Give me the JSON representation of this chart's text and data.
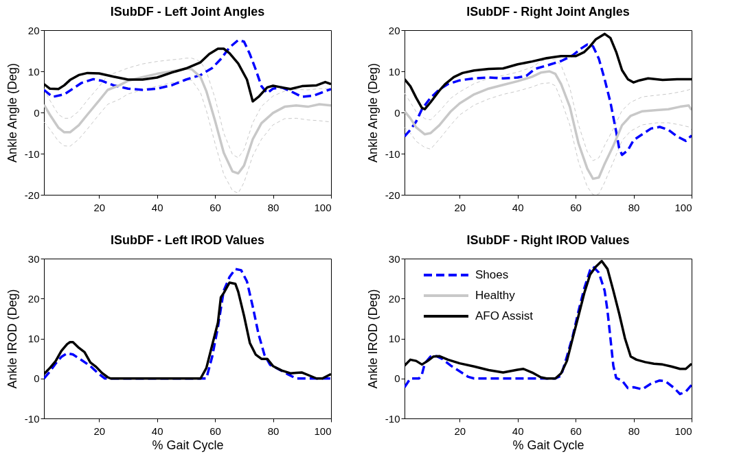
{
  "chart_data": [
    {
      "type": "line",
      "title": "ISubDF - Left Joint Angles",
      "ylabel": "Ankle Angle (Deg)",
      "xlim": [
        1,
        100
      ],
      "xticks": [
        20,
        40,
        60,
        80,
        100
      ],
      "ylim": [
        -20,
        20
      ],
      "yticks": [
        -20,
        -10,
        0,
        10,
        20
      ],
      "grid": false,
      "series": [
        {
          "color": "#0000ff",
          "line_style": "dashed",
          "x": [
            1,
            4,
            8,
            11,
            14,
            18,
            21,
            25,
            30,
            35,
            40,
            45,
            50,
            55,
            59,
            62,
            65,
            68,
            70,
            72,
            74,
            76,
            78,
            80,
            83,
            86,
            90,
            94,
            97,
            100
          ],
          "values": [
            5.5,
            3.8,
            4.4,
            5.8,
            7.2,
            8.1,
            7.7,
            6.6,
            5.8,
            5.5,
            5.8,
            6.6,
            8.0,
            9.1,
            10.8,
            13.0,
            15.8,
            17.6,
            17.2,
            14.2,
            10.5,
            6.4,
            4.7,
            5.8,
            6.1,
            5.2,
            3.8,
            4.1,
            4.9,
            5.7
          ]
        },
        {
          "color": "#c8c8c8",
          "line_style": "dotted",
          "x": [
            1,
            3,
            6,
            8,
            10,
            13,
            16,
            20,
            23,
            27,
            30,
            35,
            40,
            45,
            48,
            50,
            52,
            55,
            57,
            60,
            63,
            66,
            68,
            70,
            73,
            76,
            80,
            84,
            88,
            92,
            96,
            100
          ],
          "values": [
            5.8,
            3.0,
            -0.5,
            -1.4,
            -1.4,
            0.3,
            3.0,
            6.3,
            9.0,
            10.0,
            10.8,
            11.8,
            12.4,
            12.8,
            13.0,
            13.2,
            13.2,
            12.4,
            10.0,
            3.5,
            -5.0,
            -10.2,
            -11.0,
            -9.0,
            -2.5,
            1.5,
            4.0,
            5.2,
            5.6,
            5.5,
            5.8,
            5.8
          ]
        },
        {
          "color": "#c8c8c8",
          "line_style": "dotted",
          "x": [
            1,
            3,
            6,
            8,
            10,
            13,
            16,
            20,
            23,
            27,
            30,
            35,
            40,
            45,
            48,
            50,
            52,
            55,
            57,
            60,
            63,
            66,
            68,
            70,
            73,
            76,
            80,
            84,
            88,
            92,
            96,
            100
          ],
          "values": [
            -2.3,
            -4.0,
            -7.0,
            -8.1,
            -8.2,
            -6.5,
            -4.0,
            -0.5,
            2.0,
            3.2,
            4.5,
            5.5,
            6.4,
            7.2,
            7.6,
            8.0,
            7.8,
            4.8,
            0.5,
            -7.5,
            -15.0,
            -19.0,
            -19.6,
            -17.0,
            -10.5,
            -6.5,
            -3.0,
            -1.5,
            -1.4,
            -1.8,
            -2.0,
            -2.3
          ]
        },
        {
          "color": "#c8c8c8",
          "line_style": "solid",
          "x": [
            1,
            3,
            6,
            8,
            10,
            13,
            16,
            20,
            23,
            27,
            30,
            35,
            40,
            45,
            48,
            50,
            52,
            55,
            57,
            60,
            63,
            66,
            68,
            70,
            73,
            76,
            80,
            84,
            88,
            92,
            96,
            100
          ],
          "values": [
            1.9,
            -0.5,
            -3.7,
            -4.8,
            -4.8,
            -3.1,
            -0.5,
            2.9,
            5.5,
            6.6,
            7.7,
            8.6,
            9.4,
            10.0,
            10.4,
            10.7,
            10.5,
            8.6,
            5.2,
            -2.0,
            -9.8,
            -14.3,
            -14.8,
            -12.9,
            -6.5,
            -2.6,
            -0.1,
            1.4,
            1.7,
            1.4,
            2.0,
            1.7
          ]
        },
        {
          "color": "#000000",
          "line_style": "solid",
          "x": [
            1,
            3,
            6,
            8,
            10,
            13,
            16,
            20,
            25,
            30,
            35,
            40,
            45,
            50,
            55,
            58,
            61,
            63,
            65,
            68,
            71,
            73,
            75,
            78,
            80,
            83,
            86,
            90,
            95,
            98,
            100
          ],
          "values": [
            6.9,
            5.8,
            5.7,
            6.6,
            7.9,
            9.1,
            9.6,
            9.5,
            8.7,
            8.0,
            8.0,
            8.5,
            9.7,
            10.7,
            12.2,
            14.2,
            15.5,
            15.5,
            14.4,
            11.9,
            8.0,
            2.7,
            3.8,
            6.1,
            6.5,
            6.1,
            5.7,
            6.4,
            6.6,
            7.4,
            6.9
          ]
        }
      ]
    },
    {
      "type": "line",
      "title": "ISubDF - Right Joint Angles",
      "ylabel": "Ankle Angle (Deg)",
      "xlim": [
        1,
        100
      ],
      "xticks": [
        20,
        40,
        60,
        80,
        100
      ],
      "ylim": [
        -20,
        20
      ],
      "yticks": [
        -20,
        -10,
        0,
        10,
        20
      ],
      "grid": false,
      "series": [
        {
          "color": "#0000ff",
          "line_style": "dashed",
          "x": [
            1,
            3,
            5,
            7,
            10,
            13,
            16,
            20,
            25,
            30,
            35,
            40,
            43,
            46,
            50,
            55,
            59,
            62,
            64,
            66,
            68,
            70,
            72,
            74,
            75,
            76,
            78,
            80,
            83,
            86,
            89,
            92,
            95,
            98,
            100
          ],
          "values": [
            -5.8,
            -4.2,
            -2.2,
            0.8,
            3.6,
            5.6,
            6.9,
            7.8,
            8.3,
            8.5,
            8.3,
            8.5,
            8.9,
            10.6,
            11.4,
            12.5,
            13.9,
            15.6,
            16.5,
            16.1,
            13.1,
            8.1,
            2.5,
            -4.7,
            -8.6,
            -10.3,
            -9.2,
            -6.7,
            -5.3,
            -3.9,
            -3.5,
            -4.2,
            -5.8,
            -6.9,
            -5.6
          ]
        },
        {
          "color": "#c8c8c8",
          "line_style": "dotted",
          "x": [
            1,
            3,
            5,
            8,
            10,
            13,
            17,
            20,
            25,
            30,
            35,
            40,
            45,
            48,
            51,
            53,
            55,
            58,
            61,
            64,
            66,
            68,
            70,
            73,
            76,
            79,
            83,
            88,
            92,
            96,
            99,
            100
          ],
          "values": [
            4.7,
            2.5,
            0.2,
            -1.5,
            -1.8,
            0.3,
            3.5,
            5.0,
            7.0,
            8.3,
            9.0,
            9.8,
            11.0,
            12.5,
            13.0,
            12.8,
            11.5,
            6.0,
            -3.0,
            -9.5,
            -11.7,
            -11.0,
            -8.0,
            -4.0,
            0.5,
            2.5,
            3.8,
            4.2,
            4.5,
            5.0,
            5.5,
            5.8
          ]
        },
        {
          "color": "#c8c8c8",
          "line_style": "dotted",
          "x": [
            1,
            3,
            5,
            8,
            10,
            13,
            17,
            20,
            25,
            30,
            35,
            40,
            45,
            48,
            51,
            53,
            55,
            58,
            61,
            64,
            66,
            68,
            70,
            73,
            76,
            79,
            83,
            88,
            92,
            96,
            99,
            100
          ],
          "values": [
            -3.6,
            -5.0,
            -7.0,
            -8.5,
            -8.9,
            -6.5,
            -3.0,
            -0.6,
            1.8,
            3.3,
            4.4,
            5.2,
            6.2,
            7.0,
            7.2,
            6.5,
            3.0,
            -3.0,
            -12.0,
            -18.0,
            -20,
            -19.8,
            -17.0,
            -12.0,
            -6.8,
            -4.5,
            -3.0,
            -2.5,
            -2.5,
            -3.0,
            -3.5,
            -4.2
          ]
        },
        {
          "color": "#c8c8c8",
          "line_style": "solid",
          "x": [
            1,
            3,
            5,
            8,
            10,
            13,
            17,
            20,
            25,
            30,
            35,
            40,
            45,
            48,
            51,
            53,
            55,
            58,
            61,
            64,
            66,
            68,
            70,
            73,
            76,
            79,
            83,
            88,
            92,
            96,
            99,
            100
          ],
          "values": [
            0.3,
            -1.4,
            -3.6,
            -5.3,
            -5.0,
            -3.1,
            0.3,
            2.2,
            4.4,
            5.8,
            6.7,
            7.6,
            8.7,
            9.7,
            10.0,
            9.4,
            6.9,
            1.4,
            -7.5,
            -13.6,
            -16.1,
            -15.8,
            -12.5,
            -8.1,
            -3.1,
            -0.8,
            0.3,
            0.6,
            0.8,
            1.4,
            1.7,
            0.6
          ]
        },
        {
          "color": "#000000",
          "line_style": "solid",
          "x": [
            1,
            3,
            5,
            7,
            8,
            10,
            13,
            15,
            18,
            21,
            25,
            30,
            35,
            40,
            45,
            50,
            55,
            60,
            63,
            65,
            67,
            70,
            72,
            74,
            76,
            78,
            80,
            82,
            85,
            90,
            95,
            100
          ],
          "values": [
            8.1,
            6.4,
            3.6,
            1.1,
            0.8,
            2.5,
            5.3,
            6.9,
            8.6,
            9.6,
            10.2,
            10.6,
            10.7,
            11.7,
            12.4,
            13.2,
            13.7,
            13.7,
            14.7,
            16.1,
            17.8,
            19.1,
            18.1,
            14.7,
            10.3,
            8.1,
            7.3,
            7.8,
            8.3,
            7.9,
            8.1,
            8.1
          ]
        }
      ]
    },
    {
      "type": "line",
      "title": "ISubDF - Left IROD Values",
      "xlabel": "% Gait Cycle",
      "ylabel": "Ankle IROD (Deg)",
      "xlim": [
        1,
        100
      ],
      "xticks": [
        20,
        40,
        60,
        80,
        100
      ],
      "ylim": [
        -10,
        30
      ],
      "yticks": [
        -10,
        0,
        10,
        20,
        30
      ],
      "grid": false,
      "series": [
        {
          "color": "#0000ff",
          "line_style": "dashed",
          "x": [
            1,
            3,
            5,
            7,
            9,
            11,
            14,
            17,
            20,
            22,
            57,
            59,
            61,
            63,
            65,
            67,
            69,
            71,
            73,
            75,
            77,
            79,
            82,
            85,
            88,
            100
          ],
          "values": [
            0,
            1.7,
            3.7,
            5.4,
            6.3,
            6.0,
            4.6,
            3.1,
            1.1,
            0,
            0,
            5.4,
            12.9,
            22.0,
            25.4,
            27.4,
            27.1,
            24.3,
            18.0,
            11.1,
            6.0,
            3.4,
            2.3,
            1.1,
            0,
            0
          ]
        },
        {
          "color": "#000000",
          "line_style": "solid",
          "x": [
            1,
            3,
            5,
            7,
            9,
            10,
            11,
            13,
            15,
            17,
            19,
            21,
            23,
            24,
            55,
            57,
            59,
            61,
            62,
            63,
            65,
            67,
            68,
            70,
            72,
            74,
            76,
            78,
            80,
            83,
            86,
            88,
            90,
            93,
            95,
            97,
            100
          ],
          "values": [
            1.1,
            2.6,
            4.3,
            6.9,
            8.6,
            9.1,
            9.1,
            7.7,
            6.6,
            4.0,
            2.9,
            1.4,
            0.3,
            0,
            0,
            2.6,
            8.3,
            14.0,
            20.3,
            21.4,
            24.0,
            23.7,
            21.7,
            15.7,
            8.9,
            6.0,
            4.9,
            4.9,
            3.1,
            2.0,
            1.3,
            1.4,
            1.5,
            0.6,
            0,
            0,
            1.1
          ]
        }
      ]
    },
    {
      "type": "line",
      "title": "ISubDF - Right IROD Values",
      "xlabel": "% Gait Cycle",
      "ylabel": "Ankle IROD (Deg)",
      "xlim": [
        1,
        100
      ],
      "xticks": [
        20,
        40,
        60,
        80,
        100
      ],
      "ylim": [
        -10,
        30
      ],
      "yticks": [
        -10,
        0,
        10,
        20,
        30
      ],
      "grid": false,
      "legend": "top left",
      "series": [
        {
          "name": "Shoes",
          "color": "#0000ff",
          "line_style": "dashed",
          "x": [
            1,
            3,
            6,
            7,
            8,
            10,
            12,
            14,
            17,
            20,
            23,
            25,
            53,
            55,
            57,
            59,
            61,
            63,
            65,
            66,
            68,
            70,
            71,
            72,
            73,
            74,
            76,
            78,
            80,
            83,
            86,
            89,
            91,
            94,
            96,
            98,
            100
          ],
          "values": [
            -2.2,
            0,
            0,
            1.0,
            3.8,
            5.5,
            5.6,
            4.9,
            3.2,
            1.8,
            0.4,
            0,
            0,
            0.7,
            5.5,
            10.6,
            16.9,
            22.6,
            27.1,
            28.0,
            26.5,
            22.0,
            16.9,
            10.1,
            3.2,
            0.1,
            -0.5,
            -2.4,
            -2.2,
            -2.7,
            -1.3,
            -0.5,
            -0.7,
            -2.4,
            -3.9,
            -3.3,
            -1.6
          ]
        },
        {
          "name": "Healthy",
          "color": "#c8c8c8",
          "line_style": "solid"
        },
        {
          "name": "AFO Assist",
          "color": "#000000",
          "line_style": "solid",
          "x": [
            1,
            3,
            5,
            7,
            9,
            11,
            13,
            16,
            20,
            25,
            30,
            35,
            40,
            42,
            45,
            48,
            50,
            53,
            55,
            57,
            59,
            61,
            63,
            65,
            67,
            69,
            71,
            73,
            75,
            77,
            79,
            81,
            84,
            87,
            90,
            93,
            96,
            98,
            100
          ],
          "values": [
            3.2,
            4.7,
            4.4,
            3.5,
            4.4,
            5.5,
            5.6,
            4.7,
            3.8,
            3.0,
            2.1,
            1.5,
            2.2,
            2.4,
            1.5,
            0.3,
            0,
            0,
            1.3,
            4.4,
            10.1,
            15.7,
            21.4,
            26.0,
            28.0,
            29.4,
            27.4,
            22.0,
            16.3,
            10.1,
            5.5,
            4.7,
            4.1,
            3.7,
            3.5,
            3.0,
            2.4,
            2.4,
            3.7
          ]
        }
      ]
    }
  ]
}
